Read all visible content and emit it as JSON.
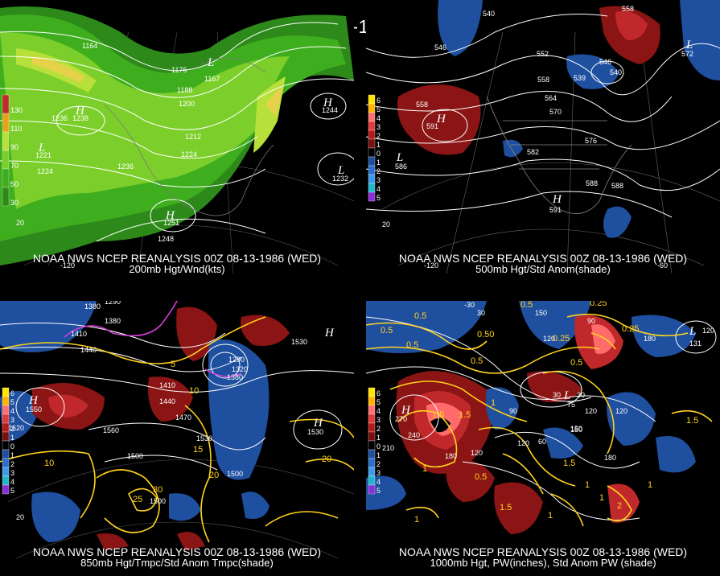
{
  "title": "00Z 08-13-1986 (WED)",
  "panels": [
    {
      "caption_line1": "NOAA NWS NCEP REANALYSIS 00Z 08-13-1986 (WED)",
      "caption_line2": "200mb Hgt/Wnd(kts)",
      "colorbar": [
        "130",
        "110",
        "90",
        "70",
        "50",
        "30"
      ],
      "colorbar_colors": [
        "#c0282b",
        "#e6a21e",
        "#b8e03a",
        "#7ccf2a",
        "#3fae1e",
        "#2d8a1a"
      ],
      "contour_labels": [
        "1164",
        "1176",
        "1188",
        "1200",
        "1212",
        "1224",
        "1236",
        "1224",
        "1236",
        "1248",
        "1244",
        "1232"
      ],
      "highs": [
        {
          "letter": "H",
          "value": "1238"
        },
        {
          "letter": "H",
          "value": "1251"
        },
        {
          "letter": "H",
          "value": "1244"
        }
      ],
      "lows": [
        {
          "letter": "L",
          "value": "1221"
        },
        {
          "letter": "L",
          "value": "1167"
        },
        {
          "letter": "L",
          "value": "1232"
        }
      ],
      "tick_labels": [
        "-120",
        "20"
      ]
    },
    {
      "caption_line1": "NOAA NWS NCEP REANALYSIS 00Z 08-13-1986 (WED)",
      "caption_line2": "500mb Hgt/Std Anom(shade)",
      "colorbar": [
        "6",
        "5",
        "4",
        "3",
        "2",
        "1",
        "0",
        "1",
        "2",
        "3",
        "4",
        "5"
      ],
      "colorbar_colors": [
        "#ffe600",
        "#ffb400",
        "#ff7070",
        "#e23a3a",
        "#b51a1a",
        "#7a0f0f",
        "#000000",
        "#1f4f9f",
        "#2a6fd0",
        "#3d9ae8",
        "#1fb7c9",
        "#8a2fd6"
      ],
      "contour_labels": [
        "546",
        "540",
        "552",
        "558",
        "546",
        "540",
        "558",
        "564",
        "570",
        "576",
        "582",
        "588",
        "588",
        "558"
      ],
      "highs": [
        {
          "letter": "H",
          "value": "591"
        },
        {
          "letter": "H",
          "value": "591"
        }
      ],
      "lows": [
        {
          "letter": "L",
          "value": "586"
        },
        {
          "letter": "L",
          "value": "572"
        },
        {
          "letter": "L",
          "value": "539"
        }
      ],
      "tick_labels": [
        "-120",
        "-60",
        "20"
      ]
    },
    {
      "caption_line1": "NOAA NWS NCEP REANALYSIS 00Z 08-13-1986 (WED)",
      "caption_line2": "850mb Hgt/Tmpc/Std Anom Tmpc(shade)",
      "colorbar": [
        "6",
        "5",
        "4",
        "3",
        "2",
        "1",
        "0",
        "1",
        "2",
        "3",
        "4",
        "5"
      ],
      "colorbar_colors": [
        "#ffe600",
        "#ffb400",
        "#ff7070",
        "#e23a3a",
        "#b51a1a",
        "#7a0f0f",
        "#000000",
        "#1f4f9f",
        "#2a6fd0",
        "#3d9ae8",
        "#1fb7c9",
        "#8a2fd6"
      ],
      "contour_labels": [
        "1290",
        "1380",
        "1410",
        "1440",
        "1380",
        "1410",
        "1440",
        "1470",
        "1500",
        "1530",
        "1530",
        "1560",
        "1500",
        "1500",
        "1290",
        "1320",
        "1380"
      ],
      "temp_labels": [
        "5",
        "10",
        "10",
        "15",
        "20",
        "25",
        "30",
        "20"
      ],
      "highs": [
        {
          "letter": "H",
          "value": "1550"
        },
        {
          "letter": "H",
          "value": "1530"
        },
        {
          "letter": "H",
          "value": "1530"
        }
      ],
      "lows": [
        {
          "letter": "L",
          "value": "1620"
        }
      ],
      "tick_labels": [
        "20"
      ]
    },
    {
      "caption_line1": "NOAA NWS NCEP REANALYSIS 00Z 08-13-1986 (WED)",
      "caption_line2": "1000mb Hgt, PW(inches), Std Anom PW (shade)",
      "colorbar": [
        "6",
        "5",
        "4",
        "3",
        "2",
        "1",
        "0",
        "1",
        "2",
        "3",
        "4",
        "5"
      ],
      "colorbar_colors": [
        "#ffe600",
        "#ffb400",
        "#ff7070",
        "#e23a3a",
        "#b51a1a",
        "#7a0f0f",
        "#000000",
        "#1f4f9f",
        "#2a6fd0",
        "#3d9ae8",
        "#1fb7c9",
        "#8a2fd6"
      ],
      "contour_labels": [
        "-30",
        "30",
        "150",
        "120",
        "90",
        "30",
        "120",
        "180",
        "120",
        "150",
        "90",
        "120",
        "60",
        "180",
        "240",
        "210",
        "180",
        "120",
        "120",
        "30",
        "150"
      ],
      "pw_labels": [
        "0.5",
        "0.5",
        "0.5",
        "0.50",
        "0.5",
        "0.25",
        "0.25",
        "0.25",
        "0.5",
        "1.5",
        "1.5",
        "1",
        "1",
        "1.5",
        "1",
        "1.5",
        "1",
        "2",
        "0.5",
        "0.5",
        "1.5",
        "1",
        "1",
        "1"
      ],
      "highs": [
        {
          "letter": "H",
          "value": "270"
        }
      ],
      "lows": [
        {
          "letter": "L",
          "value": "131"
        },
        {
          "letter": "L",
          "value": "75"
        }
      ],
      "tick_labels": []
    }
  ]
}
